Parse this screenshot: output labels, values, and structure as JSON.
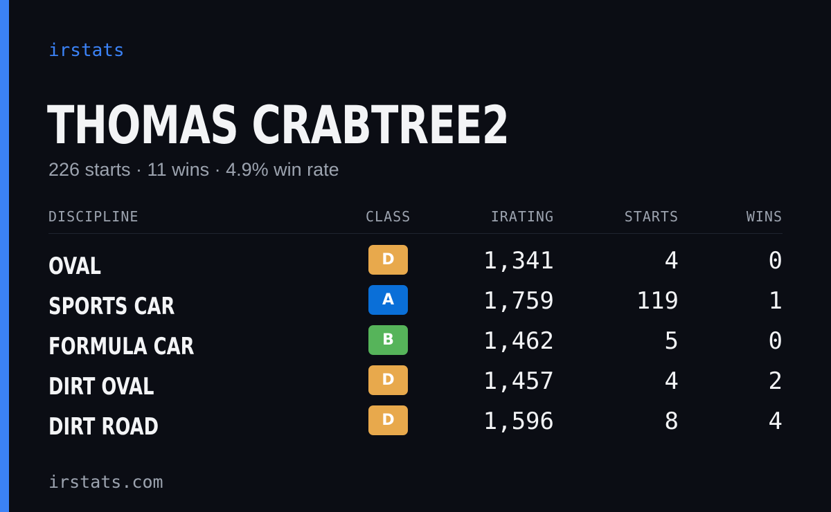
{
  "brand": "irstats",
  "driver": {
    "name": "THOMAS CRABTREE2",
    "summary": "226 starts · 11 wins · 4.9% win rate"
  },
  "table": {
    "headers": {
      "discipline": "DISCIPLINE",
      "class": "CLASS",
      "irating": "IRATING",
      "starts": "STARTS",
      "wins": "WINS"
    },
    "rows": [
      {
        "discipline": "OVAL",
        "class": "D",
        "class_color": "#e8a94c",
        "irating": "1,341",
        "starts": "4",
        "wins": "0"
      },
      {
        "discipline": "SPORTS CAR",
        "class": "A",
        "class_color": "#0a6fd8",
        "irating": "1,759",
        "starts": "119",
        "wins": "1"
      },
      {
        "discipline": "FORMULA CAR",
        "class": "B",
        "class_color": "#56b45a",
        "irating": "1,462",
        "starts": "5",
        "wins": "0"
      },
      {
        "discipline": "DIRT OVAL",
        "class": "D",
        "class_color": "#e8a94c",
        "irating": "1,457",
        "starts": "4",
        "wins": "2"
      },
      {
        "discipline": "DIRT ROAD",
        "class": "D",
        "class_color": "#e8a94c",
        "irating": "1,596",
        "starts": "8",
        "wins": "4"
      }
    ]
  },
  "footer": "irstats.com",
  "colors": {
    "accent": "#3b82f6",
    "background": "#0b0d14"
  }
}
